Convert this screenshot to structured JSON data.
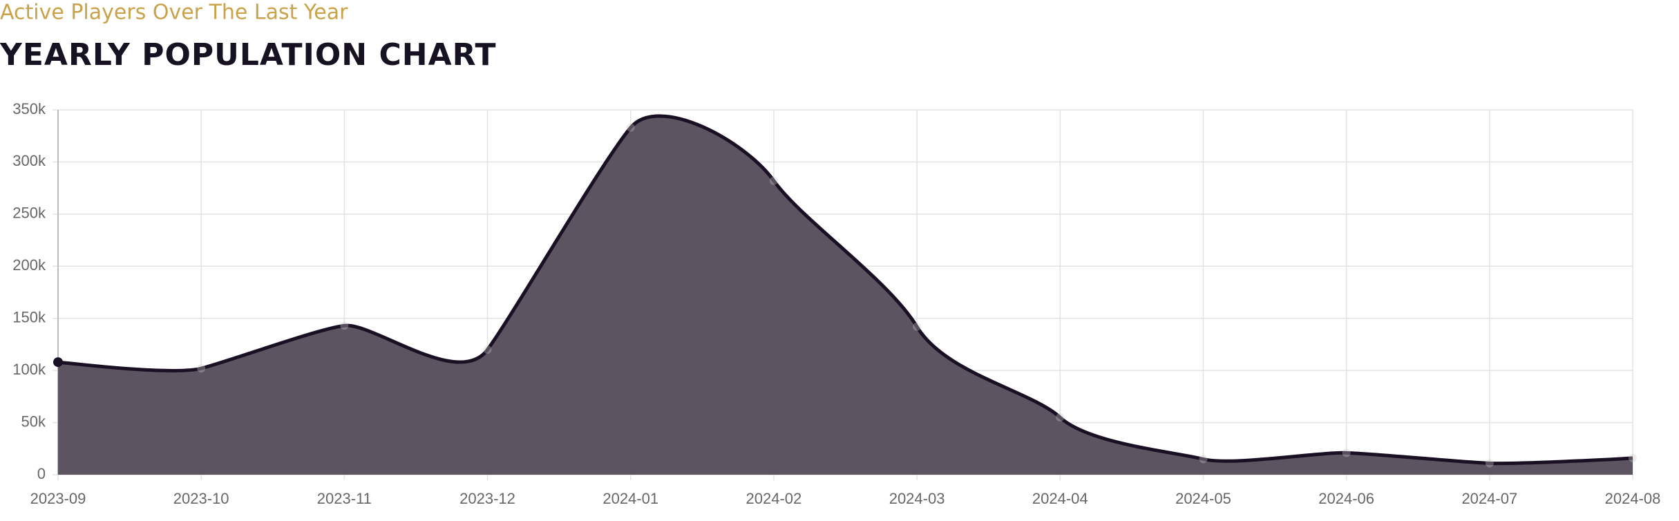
{
  "chart_data": {
    "type": "area",
    "subtitle": "Active Players Over The Last Year",
    "title": "YEARLY POPULATION CHART",
    "categories": [
      "2023-09",
      "2023-10",
      "2023-11",
      "2023-12",
      "2024-01",
      "2024-02",
      "2024-03",
      "2024-04",
      "2024-05",
      "2024-06",
      "2024-07",
      "2024-08"
    ],
    "series": [
      {
        "name": "Active Players",
        "color": "#1a1024",
        "values": [
          108000,
          102000,
          143000,
          120000,
          333000,
          282000,
          142000,
          55000,
          15000,
          21000,
          11000,
          16000
        ]
      }
    ],
    "ylim": [
      0,
      350000
    ],
    "yticks": [
      0,
      {
        "value": 50000,
        "label": "50k"
      },
      {
        "value": 100000,
        "label": "100k"
      },
      {
        "value": 150000,
        "label": "150k"
      },
      {
        "value": 200000,
        "label": "200k"
      },
      {
        "value": 250000,
        "label": "250k"
      },
      {
        "value": 300000,
        "label": "300k"
      },
      {
        "value": 350000,
        "label": "350k"
      }
    ],
    "grid": true
  }
}
